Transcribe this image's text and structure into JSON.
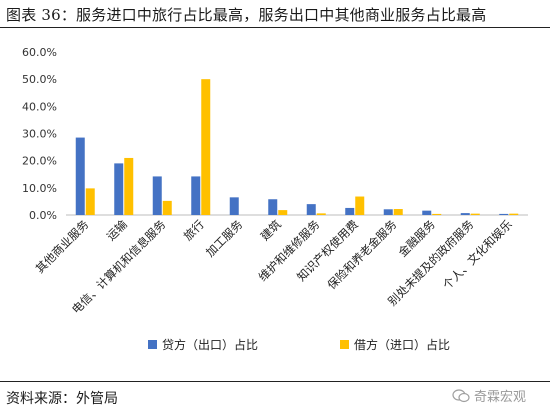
{
  "header": {
    "title": "图表 36：服务进口中旅行占比最高，服务出口中其他商业服务占比最高"
  },
  "footer": {
    "source": "资料来源：外管局",
    "watermark": "奇霖宏观"
  },
  "chart_data": {
    "type": "bar",
    "categories": [
      "其他商业服务",
      "运输",
      "电信、计算机和信息服务",
      "旅行",
      "加工服务",
      "建筑",
      "维护和维修服务",
      "知识产权使用费",
      "保险和养老金服务",
      "金融服务",
      "别处未提及的政府服务",
      "个人、文化和娱乐"
    ],
    "series": [
      {
        "name": "贷方（出口）占比",
        "color": "#4472C4",
        "values": [
          28.5,
          19.0,
          14.2,
          14.2,
          6.5,
          5.8,
          4.0,
          2.6,
          2.1,
          1.6,
          0.7,
          0.4
        ]
      },
      {
        "name": "借方（进口）占比",
        "color": "#FFC000",
        "values": [
          9.8,
          21.0,
          5.2,
          50.0,
          0.0,
          1.8,
          0.6,
          6.8,
          2.2,
          0.4,
          0.5,
          0.5
        ]
      }
    ],
    "ylim": [
      0,
      60
    ],
    "yticks": [
      "0.0%",
      "10.0%",
      "20.0%",
      "30.0%",
      "40.0%",
      "50.0%",
      "60.0%"
    ],
    "legend": "bottom",
    "grid": false
  }
}
